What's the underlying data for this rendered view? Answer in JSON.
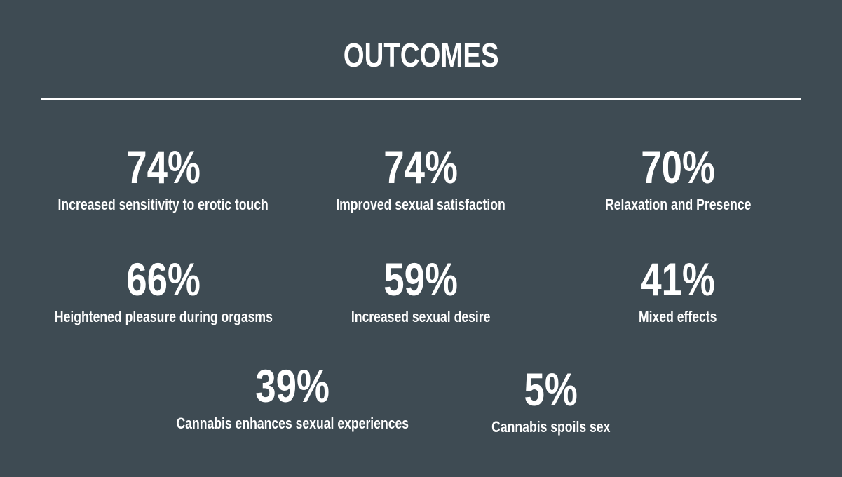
{
  "header": {
    "title": "OUTCOMES"
  },
  "items": [
    {
      "stat": "74%",
      "label": "Increased sensitivity to erotic touch"
    },
    {
      "stat": "74%",
      "label": "Improved sexual satisfaction"
    },
    {
      "stat": "70%",
      "label": "Relaxation and Presence"
    },
    {
      "stat": "66%",
      "label": "Heightened pleasure during orgasms"
    },
    {
      "stat": "59%",
      "label": "Increased sexual desire"
    },
    {
      "stat": "41%",
      "label": "Mixed effects"
    },
    {
      "stat": "39%",
      "label": "Cannabis enhances sexual experiences"
    },
    {
      "stat": "5%",
      "label": "Cannabis spoils sex"
    }
  ]
}
